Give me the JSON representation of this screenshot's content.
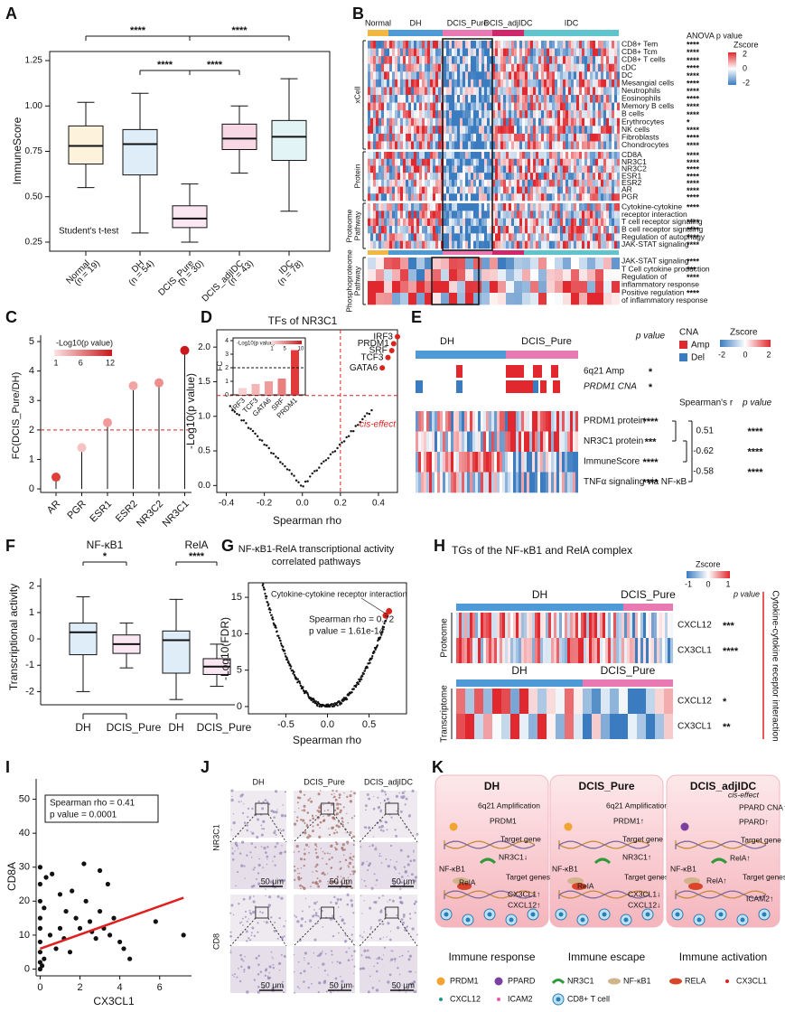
{
  "panel_labels": [
    "A",
    "B",
    "C",
    "D",
    "E",
    "F",
    "G",
    "H",
    "I",
    "J",
    "K"
  ],
  "a": {
    "ylabel": "ImmuneScore",
    "categories": [
      "Normal",
      "DH",
      "DCIS_Pure",
      "DCIS_adjIDC",
      "IDC"
    ],
    "counts": [
      "(n = 19)",
      "(n = 54)",
      "(n = 30)",
      "(n = 43)",
      "(n = 78)"
    ],
    "colors": [
      "#f2b73f",
      "#4d9ad6",
      "#e979b2",
      "#d0266a",
      "#5fc4cb"
    ],
    "boxes": [
      {
        "low": 0.55,
        "q1": 0.68,
        "median": 0.78,
        "q3": 0.89,
        "high": 1.02
      },
      {
        "low": 0.3,
        "q1": 0.62,
        "median": 0.79,
        "q3": 0.87,
        "high": 1.07
      },
      {
        "low": 0.25,
        "q1": 0.33,
        "median": 0.38,
        "q3": 0.45,
        "high": 0.57
      },
      {
        "low": 0.63,
        "q1": 0.76,
        "median": 0.82,
        "q3": 0.9,
        "high": 1.0
      },
      {
        "low": 0.42,
        "q1": 0.7,
        "median": 0.83,
        "q3": 0.92,
        "high": 1.15
      }
    ],
    "ylim": [
      0.2,
      1.3
    ],
    "yticks": [
      0.25,
      {
        "value": 0.5,
        "label": "0.50"
      },
      0.75,
      {
        "value": 1,
        "label": "1.00"
      },
      1.25
    ],
    "sig": [
      "****",
      "****",
      "****",
      "****"
    ],
    "test": "Student's t-test"
  },
  "b": {
    "p_title": "ANOVA p value",
    "zscore": "Zscore",
    "zticks": [
      2,
      0,
      -2
    ],
    "groups": [
      "Normal",
      "DH",
      "DCIS_Pure",
      "DCIS_adjIDC",
      "IDC"
    ],
    "group_colors": [
      "#f2b73f",
      "#4d9ad6",
      "#e979b2",
      "#d0266a",
      "#5fc4cb"
    ],
    "blocks": [
      {
        "name": [
          "xCell"
        ],
        "rows": [
          {
            "label": [
              "CD8+ Tem"
            ],
            "p": "****"
          },
          {
            "label": [
              "CD8+ Tcm"
            ],
            "p": "****"
          },
          {
            "label": [
              "CD8+ T cells"
            ],
            "p": "****"
          },
          {
            "label": [
              "cDC"
            ],
            "p": "****"
          },
          {
            "label": [
              "DC"
            ],
            "p": "****"
          },
          {
            "label": [
              "Mesangial cells"
            ],
            "p": "****"
          },
          {
            "label": [
              "Neutrophils"
            ],
            "p": "****"
          },
          {
            "label": [
              "Eosinophils"
            ],
            "p": "****"
          },
          {
            "label": [
              "Memory B cells"
            ],
            "p": "****"
          },
          {
            "label": [
              "B cells"
            ],
            "p": "****"
          },
          {
            "label": [
              "Erythrocytes"
            ],
            "p": "*"
          },
          {
            "label": [
              "NK cells"
            ],
            "p": "****"
          },
          {
            "label": [
              "Fibroblasts"
            ],
            "p": "****"
          },
          {
            "label": [
              "Chondrocytes"
            ],
            "p": "****"
          }
        ]
      },
      {
        "name": [
          "Protein"
        ],
        "rows": [
          {
            "label": [
              "CD8A"
            ],
            "p": "****"
          },
          {
            "label": [
              "NR3C1"
            ],
            "p": "****"
          },
          {
            "label": [
              "NR3C2"
            ],
            "p": "****"
          },
          {
            "label": [
              "ESR1"
            ],
            "p": "****"
          },
          {
            "label": [
              "ESR2"
            ],
            "p": "****"
          },
          {
            "label": [
              "AR"
            ],
            "p": "****"
          },
          {
            "label": [
              "PGR"
            ],
            "p": "****"
          }
        ]
      },
      {
        "name": [
          "Proteome",
          "Pathway"
        ],
        "rows": [
          {
            "label": [
              "Cytokine-cytokine",
              "receptor interaction"
            ],
            "p": "****"
          },
          {
            "label": [
              "T cell receptor signaling"
            ],
            "p": "****"
          },
          {
            "label": [
              "B cell receptor signaling"
            ],
            "p": "****"
          },
          {
            "label": [
              "Regulation of autophagy"
            ],
            "p": "****"
          },
          {
            "label": [
              "JAK-STAT signaling"
            ],
            "p": "****"
          }
        ]
      },
      {
        "name": [
          "Phosphoproteome",
          "Pathway"
        ],
        "rows": [
          {
            "label": [
              "JAK-STAT signaling"
            ],
            "p": "****"
          },
          {
            "label": [
              "T Cell cytokine production"
            ],
            "p": "***"
          },
          {
            "label": [
              "Regulation of",
              "inflammatory response"
            ],
            "p": "****"
          },
          {
            "label": [
              "Positive regulation",
              "of inflammatory response"
            ],
            "p": "****"
          }
        ]
      }
    ]
  },
  "c": {
    "ylabel": "FC(DCIS_Pure/DH)",
    "categories": [
      "AR",
      "PGR",
      "ESR1",
      "ESR2",
      "NR3C2",
      "NR3C1"
    ],
    "values": [
      0.4,
      1.4,
      2.25,
      3.5,
      3.6,
      4.7
    ],
    "colors": [
      "#e0403a",
      "#f6c2c2",
      "#f29a9a",
      "#f2a4a4",
      "#ef8e8e",
      "#c9191c"
    ],
    "ylim": [
      -0.12,
      5.2
    ],
    "yticks": [
      0,
      1,
      2,
      3,
      4,
      5
    ],
    "hline": 2,
    "legend_title": "-Log10(p value)",
    "legend_ticks": [
      1,
      6,
      12
    ]
  },
  "d": {
    "title": "TFs of NR3C1",
    "xlabel": "Spearman rho",
    "ylabel": "-Log10(p value)",
    "xlim": [
      -0.45,
      0.5
    ],
    "ylim": [
      -0.1,
      2.25
    ],
    "xticks": [
      -0.4,
      -0.2,
      {
        "value": 0,
        "label": "0.0"
      },
      0.2,
      0.4
    ],
    "yticks": [
      {
        "value": 0,
        "label": "0.0"
      },
      0.5,
      {
        "value": 1,
        "label": "1.0"
      },
      1.5,
      {
        "value": 2,
        "label": "2.0"
      }
    ],
    "hline": 1.3,
    "vline": 0.2,
    "annotation": "cis-effect",
    "points": {
      "labels": [
        "IRF3",
        "PRDM1",
        "SRF",
        "TCF3",
        "GATA6"
      ],
      "x": [
        0.5,
        0.48,
        0.47,
        0.45,
        0.42
      ],
      "y": [
        2.15,
        2.05,
        1.95,
        1.85,
        1.7
      ],
      "color": "#d7261e"
    },
    "inset": {
      "ylabel": "FC",
      "categories": [
        "IRF3",
        "TCF3",
        "GATA6",
        "SRF",
        "PRDM1"
      ],
      "values": [
        0.5,
        0.8,
        1.0,
        1.2,
        3.3
      ],
      "colors": [
        "#f7d0d0",
        "#f4b5b5",
        "#f09c9c",
        "#ea7f7f",
        "#e03a3a"
      ],
      "ylim": [
        0,
        4.2
      ],
      "yticks": [
        0,
        1,
        2,
        3,
        4
      ],
      "hline": 2,
      "legend_title": "-Log10(p value)",
      "legend_ticks": [
        1,
        5,
        10
      ]
    }
  },
  "e": {
    "groups": [
      "DH",
      "DCIS_Pure"
    ],
    "p_title": "p value",
    "cna": "CNA",
    "amp": "Amp",
    "del": "Del",
    "zscore": "Zscore",
    "zticks": [
      -2,
      0,
      2
    ],
    "cna_rows": [
      {
        "label": "6q21 Amp",
        "p": "*"
      },
      {
        "label": "PRDM1 CNA",
        "p": "*"
      }
    ],
    "spearman_title": "Spearman's r",
    "p_title2": "p value",
    "rows": [
      {
        "label": "PRDM1 protein",
        "p": "****"
      },
      {
        "label": "NR3C1 protein",
        "p": "***"
      },
      {
        "label": "ImmuneScore",
        "p": "****"
      },
      {
        "label": "TNFα signaling via NF-κB",
        "p": "****"
      }
    ],
    "correlations": [
      {
        "r": "0.51",
        "p": "****"
      },
      {
        "r": "-0.62",
        "p": "****"
      },
      {
        "r": "-0.58",
        "p": "****"
      }
    ]
  },
  "f": {
    "ylabel": "Transcriptional activity",
    "categories": [
      "DH",
      "DCIS_Pure"
    ],
    "ylim": [
      -2.5,
      2.3
    ],
    "yticks": [
      -2,
      -1,
      0,
      1,
      2
    ],
    "colors": [
      "#4d9ad6",
      "#e979b2"
    ],
    "groups": [
      {
        "title": "NF-κB1",
        "sig": "*",
        "boxes": [
          {
            "low": -2.0,
            "q1": -0.6,
            "median": 0.25,
            "q3": 0.6,
            "high": 1.6
          },
          {
            "low": -1.1,
            "q1": -0.55,
            "median": -0.2,
            "q3": 0.15,
            "high": 0.6
          }
        ]
      },
      {
        "title": "RelA",
        "sig": "****",
        "boxes": [
          {
            "low": -2.3,
            "q1": -1.3,
            "median": -0.05,
            "q3": 0.3,
            "high": 1.5
          },
          {
            "low": -1.8,
            "q1": -1.35,
            "median": -1.05,
            "q3": -0.75,
            "high": -0.2
          }
        ]
      }
    ]
  },
  "g": {
    "title": [
      "NF-κB1-RelA transcriptional activity",
      "correlated pathways"
    ],
    "annotation": "Cytokine-cytokine receptor interaction",
    "stats": [
      "Spearman rho = 0.72",
      "p value = 1.61e-14"
    ],
    "xlabel": "Spearman rho",
    "ylabel": "-Log10(FDR)",
    "xlim": [
      -0.95,
      0.95
    ],
    "ylim": [
      -1,
      17
    ],
    "xticks": [
      -0.5,
      {
        "value": 0,
        "label": "0.0"
      },
      0.5
    ],
    "yticks": [
      0,
      5,
      10,
      15
    ],
    "highlight": {
      "x": [
        0.7,
        0.74
      ],
      "y": [
        12.5,
        13.1
      ],
      "color": "#d7261e"
    }
  },
  "h": {
    "title": "TGs of the NF-κB1 and RelA complex",
    "zscore": "Zscore",
    "zticks": [
      -1,
      0,
      1
    ],
    "p_title": "p value",
    "groups": [
      "DH",
      "DCIS_Pure"
    ],
    "side": "Cytokine-cytokine receptor interaction",
    "blocks": [
      {
        "name": "Proteome",
        "rows": [
          {
            "label": "CXCL12",
            "p": "***"
          },
          {
            "label": "CX3CL1",
            "p": "****"
          }
        ]
      },
      {
        "name": "Transcriptome",
        "rows": [
          {
            "label": "CXCL12",
            "p": "*"
          },
          {
            "label": "CX3CL1",
            "p": "**"
          }
        ]
      }
    ]
  },
  "i": {
    "xlabel": "CX3CL1",
    "ylabel": "CD8A",
    "stats": [
      "Spearman rho = 0.41",
      "p value = 0.0001"
    ],
    "xlim": [
      -0.2,
      7.6
    ],
    "ylim": [
      -2,
      56
    ],
    "xticks": [
      0,
      2,
      4,
      6
    ],
    "yticks": [
      0,
      10,
      20,
      30,
      40,
      50
    ],
    "x": [
      0,
      0,
      0,
      0,
      0,
      0,
      0,
      0,
      0,
      0.1,
      0.2,
      0.2,
      0.3,
      0.5,
      0.6,
      0.8,
      1,
      1,
      1.2,
      1.3,
      1.5,
      1.6,
      1.8,
      2,
      2.2,
      2.3,
      2.5,
      2.6,
      2.8,
      3,
      3,
      3.2,
      3.4,
      3.5,
      3.7,
      4,
      4.2,
      4.5,
      5.8,
      7.2
    ],
    "y": [
      0,
      2,
      5,
      8,
      12,
      15,
      20,
      25,
      30,
      1,
      3,
      18,
      27,
      10,
      28,
      6,
      12,
      22,
      9,
      17,
      5,
      23,
      15,
      12,
      31,
      20,
      14,
      11,
      9,
      17,
      29,
      12,
      25,
      10,
      15,
      8,
      6,
      3,
      14,
      10
    ],
    "fit": {
      "x": [
        0,
        7.2
      ],
      "y": [
        6,
        21
      ],
      "color": "#e02020"
    }
  },
  "j": {
    "columns": [
      "DH",
      "DCIS_Pure",
      "DCIS_adjIDC"
    ],
    "rows": [
      "NR3C1",
      "CD8"
    ],
    "scale": "50 μm"
  },
  "k": {
    "panels": [
      {
        "title": "DH",
        "items": [
          "6q21 Amplification",
          "PRDM1",
          "Target gene",
          "NR3C1↓",
          "NF-κB1",
          "RelA",
          "Target genes",
          "CX3CL1↑",
          "CXCL12↑"
        ],
        "outcome": "Immune response"
      },
      {
        "title": "DCIS_Pure",
        "items": [
          "6q21 Amplification",
          "PRDM1↑",
          "Target gene",
          "NR3C1↑",
          "NF-κB1",
          "RelA",
          "Target genes",
          "CX3CL1↓",
          "CXCL12↓"
        ],
        "outcome": "Immune escape"
      },
      {
        "title": "DCIS_adjIDC",
        "items": [
          "cis-effect",
          "PPARD CNA↑",
          "PPARD↑",
          "Target gene",
          "RelA↑",
          "NF-κB1",
          "RelA↑",
          "Target genes",
          "ICAM2↑"
        ],
        "outcome": "Immune activation"
      }
    ],
    "legend": [
      "PRDM1",
      "PPARD",
      "NR3C1",
      "NF-κB1",
      "RELA",
      "CX3CL1",
      "CXCL12",
      "ICAM2",
      "CD8+ T cell"
    ]
  }
}
